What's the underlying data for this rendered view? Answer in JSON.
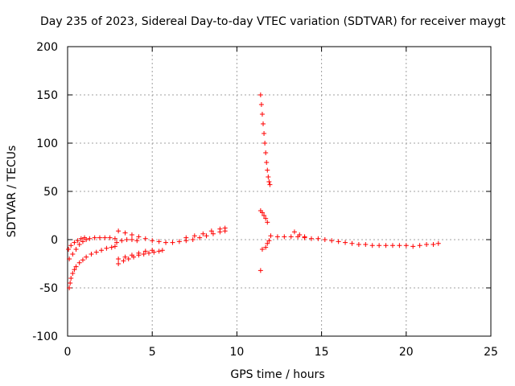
{
  "chart_data": {
    "type": "scatter",
    "title": "Day 235 of 2023, Sidereal Day-to-day VTEC variation (SDTVAR) for receiver maygt",
    "xlabel": "GPS time / hours",
    "ylabel": "SDTVAR / TECUs",
    "xlim": [
      0,
      25
    ],
    "ylim": [
      -100,
      200
    ],
    "xticks": [
      "0",
      "5",
      "10",
      "15",
      "20",
      "25"
    ],
    "yticks": [
      "-100",
      "-50",
      "0",
      "50",
      "100",
      "150",
      "200"
    ],
    "grid": true,
    "marker": "+",
    "color": "#ff0000",
    "series": [
      {
        "name": "SDTVAR",
        "points": [
          [
            0.1,
            -50
          ],
          [
            0.15,
            -45
          ],
          [
            0.2,
            -40
          ],
          [
            0.3,
            -35
          ],
          [
            0.4,
            -31
          ],
          [
            0.5,
            -28
          ],
          [
            0.7,
            -24
          ],
          [
            0.9,
            -21
          ],
          [
            1.1,
            -18
          ],
          [
            1.4,
            -15
          ],
          [
            1.7,
            -13
          ],
          [
            2.0,
            -11
          ],
          [
            2.3,
            -9
          ],
          [
            2.6,
            -8
          ],
          [
            2.8,
            -7
          ],
          [
            0.1,
            -20
          ],
          [
            0.3,
            -15
          ],
          [
            0.5,
            -10
          ],
          [
            0.7,
            -5
          ],
          [
            0.9,
            -2
          ],
          [
            1.1,
            0
          ],
          [
            1.3,
            1
          ],
          [
            1.6,
            2
          ],
          [
            1.9,
            2
          ],
          [
            2.2,
            2
          ],
          [
            2.5,
            2
          ],
          [
            2.8,
            1
          ],
          [
            0.05,
            -10
          ],
          [
            0.2,
            -6
          ],
          [
            0.4,
            -3
          ],
          [
            0.6,
            -1
          ],
          [
            0.8,
            1
          ],
          [
            1.0,
            2
          ],
          [
            3.0,
            -25
          ],
          [
            3.3,
            -22
          ],
          [
            3.6,
            -20
          ],
          [
            3.9,
            -18
          ],
          [
            4.2,
            -16
          ],
          [
            4.5,
            -15
          ],
          [
            4.8,
            -14
          ],
          [
            5.1,
            -13
          ],
          [
            5.4,
            -12
          ],
          [
            5.6,
            -11
          ],
          [
            3.0,
            -20
          ],
          [
            3.4,
            -18
          ],
          [
            3.8,
            -16
          ],
          [
            4.2,
            -14
          ],
          [
            4.6,
            -12
          ],
          [
            5.0,
            -11
          ],
          [
            2.9,
            -3
          ],
          [
            3.2,
            -1
          ],
          [
            3.5,
            0
          ],
          [
            3.8,
            0
          ],
          [
            4.1,
            -1
          ],
          [
            3.0,
            9
          ],
          [
            3.4,
            7
          ],
          [
            3.8,
            5
          ],
          [
            4.2,
            3
          ],
          [
            4.6,
            1
          ],
          [
            5.0,
            -1
          ],
          [
            5.4,
            -2
          ],
          [
            5.8,
            -3
          ],
          [
            6.2,
            -3
          ],
          [
            6.6,
            -2
          ],
          [
            7.0,
            -1
          ],
          [
            7.4,
            0
          ],
          [
            7.8,
            2
          ],
          [
            8.2,
            4
          ],
          [
            8.6,
            6
          ],
          [
            9.0,
            8
          ],
          [
            9.3,
            9
          ],
          [
            7.0,
            2
          ],
          [
            7.5,
            4
          ],
          [
            8.0,
            6
          ],
          [
            8.5,
            9
          ],
          [
            9.0,
            11
          ],
          [
            9.3,
            12
          ],
          [
            11.4,
            150
          ],
          [
            11.45,
            140
          ],
          [
            11.5,
            130
          ],
          [
            11.55,
            120
          ],
          [
            11.6,
            110
          ],
          [
            11.65,
            100
          ],
          [
            11.7,
            90
          ],
          [
            11.75,
            80
          ],
          [
            11.8,
            72
          ],
          [
            11.85,
            65
          ],
          [
            11.9,
            60
          ],
          [
            11.95,
            57
          ],
          [
            11.4,
            30
          ],
          [
            11.5,
            28
          ],
          [
            11.6,
            25
          ],
          [
            11.7,
            22
          ],
          [
            11.8,
            18
          ],
          [
            11.4,
            -32
          ],
          [
            11.5,
            -10
          ],
          [
            11.7,
            -8
          ],
          [
            11.8,
            -4
          ],
          [
            11.9,
            -1
          ],
          [
            12.0,
            4
          ],
          [
            12.4,
            3
          ],
          [
            12.8,
            3
          ],
          [
            13.2,
            3
          ],
          [
            13.6,
            3
          ],
          [
            14.0,
            2
          ],
          [
            13.4,
            8
          ],
          [
            13.7,
            5
          ],
          [
            14.0,
            3
          ],
          [
            14.4,
            1
          ],
          [
            14.8,
            1
          ],
          [
            15.2,
            0
          ],
          [
            15.6,
            -1
          ],
          [
            16.0,
            -2
          ],
          [
            16.4,
            -3
          ],
          [
            16.8,
            -4
          ],
          [
            17.2,
            -5
          ],
          [
            17.6,
            -5
          ],
          [
            18.0,
            -6
          ],
          [
            18.4,
            -6
          ],
          [
            18.8,
            -6
          ],
          [
            19.2,
            -6
          ],
          [
            19.6,
            -6
          ],
          [
            20.0,
            -6
          ],
          [
            20.4,
            -7
          ],
          [
            20.8,
            -6
          ],
          [
            21.2,
            -5
          ],
          [
            21.6,
            -5
          ],
          [
            21.9,
            -4
          ]
        ]
      }
    ]
  }
}
